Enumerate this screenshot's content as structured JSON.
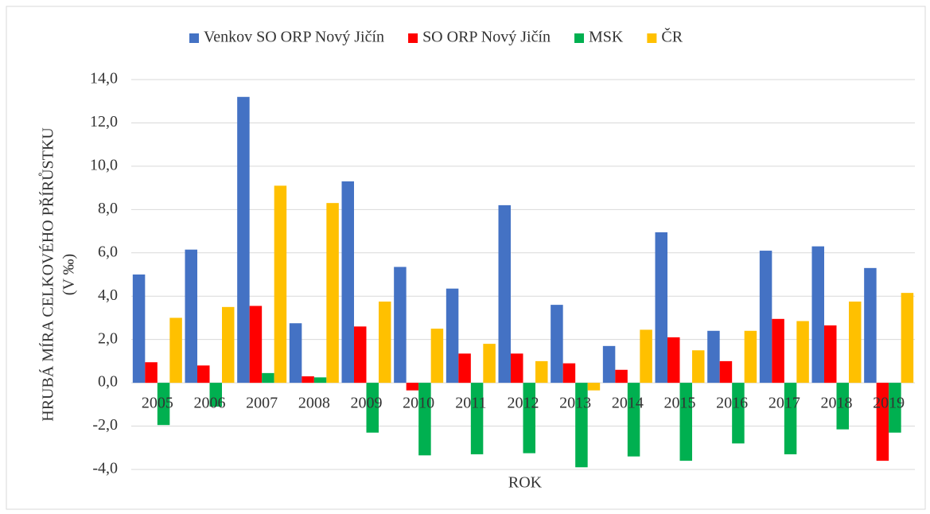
{
  "chart_data": {
    "type": "bar",
    "categories": [
      "2005",
      "2006",
      "2007",
      "2008",
      "2009",
      "2010",
      "2011",
      "2012",
      "2013",
      "2014",
      "2015",
      "2016",
      "2017",
      "2018",
      "2019"
    ],
    "series": [
      {
        "name": "Venkov SO ORP Nový Jičín",
        "color": "#4472c4",
        "values": [
          5.0,
          6.15,
          13.2,
          2.75,
          9.3,
          5.35,
          4.35,
          8.2,
          3.6,
          1.7,
          6.95,
          2.4,
          6.1,
          6.3,
          5.3
        ]
      },
      {
        "name": "SO ORP Nový Jičín",
        "color": "#ff0000",
        "values": [
          0.95,
          0.8,
          3.55,
          0.3,
          2.6,
          -0.35,
          1.35,
          1.35,
          0.9,
          0.6,
          2.1,
          1.0,
          2.95,
          2.65,
          -3.6
        ]
      },
      {
        "name": "MSK",
        "color": "#00b050",
        "values": [
          -1.95,
          -1.1,
          0.45,
          0.25,
          -2.3,
          -3.35,
          -3.3,
          -3.25,
          -3.9,
          -3.4,
          -3.6,
          -2.8,
          -3.3,
          -2.15,
          -2.3
        ]
      },
      {
        "name": "ČR",
        "color": "#ffc000",
        "values": [
          3.0,
          3.5,
          9.1,
          8.3,
          3.75,
          2.5,
          1.8,
          1.0,
          -0.35,
          2.45,
          1.5,
          2.4,
          2.85,
          3.75,
          4.15
        ]
      }
    ],
    "y_label": [
      "HRUBÁ MÍRA CELKOVÉHO PŘÍRŮSTKU",
      "(V ‰)"
    ],
    "x_label": "ROK",
    "ylim": [
      -4,
      14
    ],
    "yticks": [
      {
        "value": -4,
        "label": "-4,0"
      },
      {
        "value": -2,
        "label": "-2,0"
      },
      {
        "value": 0,
        "label": "0,0"
      },
      {
        "value": 2,
        "label": "2,0"
      },
      {
        "value": 4,
        "label": "4,0"
      },
      {
        "value": 6,
        "label": "6,0"
      },
      {
        "value": 8,
        "label": "8,0"
      },
      {
        "value": 10,
        "label": "10,0"
      },
      {
        "value": 12,
        "label": "12,0"
      },
      {
        "value": 14,
        "label": "14,0"
      }
    ],
    "grid": true,
    "legend": "top"
  }
}
